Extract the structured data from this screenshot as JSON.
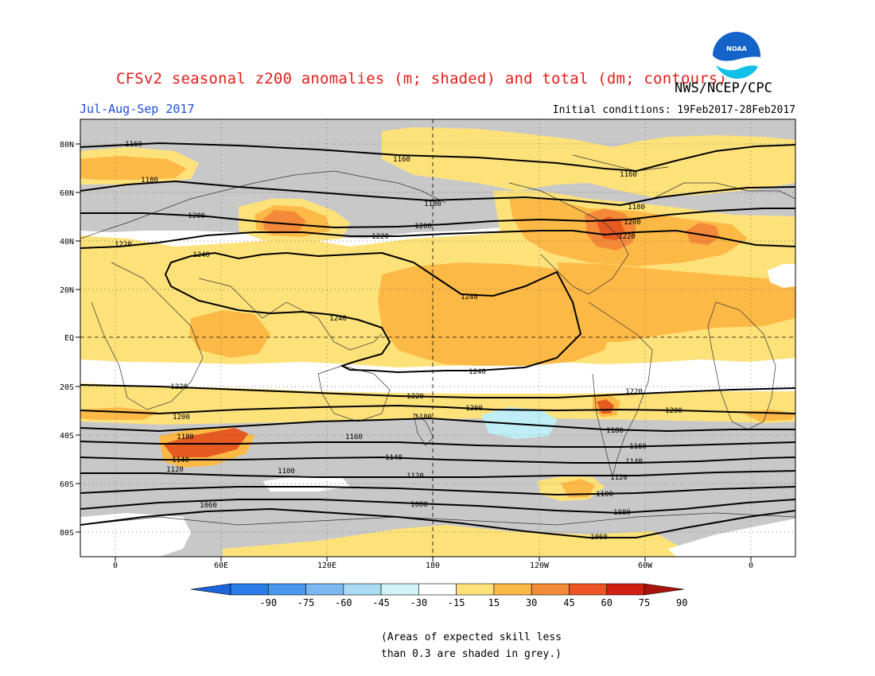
{
  "header": {
    "title": "CFSv2 seasonal z200 anomalies (m; shaded) and total (dm; contours)",
    "agency": "NWS/NCEP/CPC",
    "season": "Jul-Aug-Sep 2017",
    "initial_conditions": "Initial conditions: 19Feb2017-28Feb2017",
    "logo_text": "NOAA"
  },
  "map": {
    "lat_labels": [
      "80N",
      "60N",
      "40N",
      "20N",
      "EQ",
      "20S",
      "40S",
      "60S",
      "80S"
    ],
    "lon_labels": [
      "0",
      "60E",
      "120E",
      "180",
      "120W",
      "60W",
      "0"
    ],
    "contour_labels": [
      "1160",
      "1180",
      "1200",
      "1220",
      "1240",
      "1100",
      "1120",
      "1140",
      "1080",
      "1060"
    ]
  },
  "colorbar": {
    "tick_labels": [
      "-90",
      "-75",
      "-60",
      "-45",
      "-30",
      "-15",
      "15",
      "30",
      "45",
      "60",
      "75",
      "90"
    ],
    "colors": [
      "#1d63db",
      "#2b7be8",
      "#4a98ee",
      "#7cb7f2",
      "#a9dcf5",
      "#d2f4f8",
      "#ffffff",
      "#fde27a",
      "#fdb946",
      "#f5893a",
      "#ef5524",
      "#d21f14",
      "#a8140c"
    ]
  },
  "footnote": {
    "line1": "(Areas of expected skill less",
    "line2": "than 0.3 are shaded in grey.)"
  },
  "palette": {
    "grey_skill": "#c8c8c8",
    "light_yellow": "#fde27a",
    "yellow_orange": "#fdb946",
    "orange": "#f5893a",
    "red_orange": "#e65a22",
    "light_cyan": "#bfeef6",
    "title_red": "#e0201c",
    "season_blue": "#1f4ed8"
  }
}
